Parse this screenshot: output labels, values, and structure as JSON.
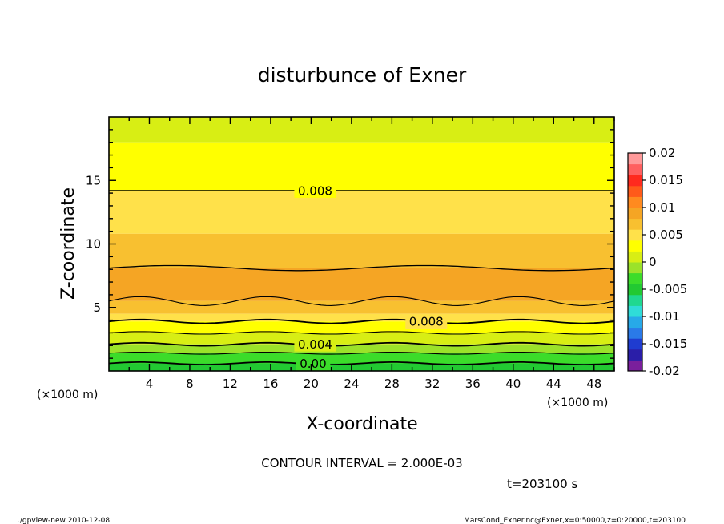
{
  "chart_data": {
    "type": "contour",
    "title": "disturbunce of Exner",
    "xlabel": "X-coordinate",
    "ylabel": "Z-coordinate",
    "x_unit": "(×1000 m)",
    "x_unit_right": "(×1000 m)",
    "xlim": [
      0,
      50
    ],
    "ylim": [
      0,
      20
    ],
    "x_ticks": [
      4,
      8,
      12,
      16,
      20,
      24,
      28,
      32,
      36,
      40,
      44,
      48
    ],
    "y_ticks": [
      5,
      10,
      15
    ],
    "contour_interval_text": "CONTOUR INTERVAL = 2.000E-03",
    "time_text": "t=203100 s",
    "colorbar": {
      "ticks": [
        "0.02",
        "0.015",
        "0.01",
        "0.005",
        "0",
        "-0.005",
        "-0.01",
        "-0.015",
        "-0.02"
      ],
      "range": [
        -0.02,
        0.02
      ],
      "colors": [
        "#7a1f9c",
        "#2a1ea8",
        "#1f3cd0",
        "#2a7ae8",
        "#27a9e8",
        "#2fdcd8",
        "#20d890",
        "#22c932",
        "#3cdc2a",
        "#9be22a",
        "#d8ee14",
        "#ffff00",
        "#ffe14a",
        "#f8c030",
        "#f5a524",
        "#ff8a1f",
        "#ff5a1a",
        "#ff2a1e",
        "#ff6060",
        "#ff9a9a"
      ]
    },
    "contour_labels": [
      {
        "text": "0.008",
        "x": 20.4,
        "z": 14.2
      },
      {
        "text": "0.008",
        "x": 31.4,
        "z": 3.9
      },
      {
        "text": "0.004",
        "x": 20.4,
        "z": 2.1
      },
      {
        "text": "0.00",
        "x": 20.2,
        "z": 0.6
      }
    ],
    "bands": [
      {
        "z0": 18.0,
        "z1": 20.0,
        "value": 0.006,
        "color": "#d8ee14"
      },
      {
        "z0": 14.2,
        "z1": 18.0,
        "value": 0.007,
        "color": "#ffff00"
      },
      {
        "z0": 10.8,
        "z1": 14.2,
        "value": 0.0075,
        "color": "#ffe14a"
      },
      {
        "z0": 8.1,
        "z1": 10.8,
        "value": 0.0085,
        "color": "#f8c030"
      },
      {
        "z0": 5.5,
        "z1": 8.1,
        "value": 0.009,
        "color": "#f5a524"
      },
      {
        "z0": 4.5,
        "z1": 5.5,
        "value": 0.0085,
        "color": "#f8c030"
      },
      {
        "z0": 3.9,
        "z1": 4.5,
        "value": 0.0078,
        "color": "#ffe14a"
      },
      {
        "z0": 3.0,
        "z1": 3.9,
        "value": 0.007,
        "color": "#ffff00"
      },
      {
        "z0": 2.1,
        "z1": 3.0,
        "value": 0.005,
        "color": "#d8ee14"
      },
      {
        "z0": 1.4,
        "z1": 2.1,
        "value": 0.0035,
        "color": "#9be22a"
      },
      {
        "z0": 0.6,
        "z1": 1.4,
        "value": 0.0015,
        "color": "#3cdc2a"
      },
      {
        "z0": 0.0,
        "z1": 0.6,
        "value": 0.0003,
        "color": "#22c932"
      }
    ],
    "contour_lines": [
      {
        "z": 14.2,
        "amp": 0.05,
        "waves": 0,
        "weight": 1.4
      },
      {
        "z": 8.1,
        "amp": 0.2,
        "waves": 2,
        "weight": 1.3
      },
      {
        "z": 5.5,
        "amp": 0.35,
        "waves": 4,
        "weight": 1.1
      },
      {
        "z": 3.9,
        "amp": 0.15,
        "waves": 4,
        "weight": 1.8
      },
      {
        "z": 3.0,
        "amp": 0.1,
        "waves": 4,
        "weight": 1.1
      },
      {
        "z": 2.1,
        "amp": 0.12,
        "waves": 4,
        "weight": 1.8
      },
      {
        "z": 1.4,
        "amp": 0.08,
        "waves": 4,
        "weight": 1.1
      },
      {
        "z": 0.6,
        "amp": 0.1,
        "waves": 4,
        "weight": 1.8
      }
    ]
  },
  "footer": {
    "left": "./gpview-new  2010-12-08",
    "right": "MarsCond_Exner.nc@Exner,x=0:50000,z=0:20000,t=203100"
  }
}
